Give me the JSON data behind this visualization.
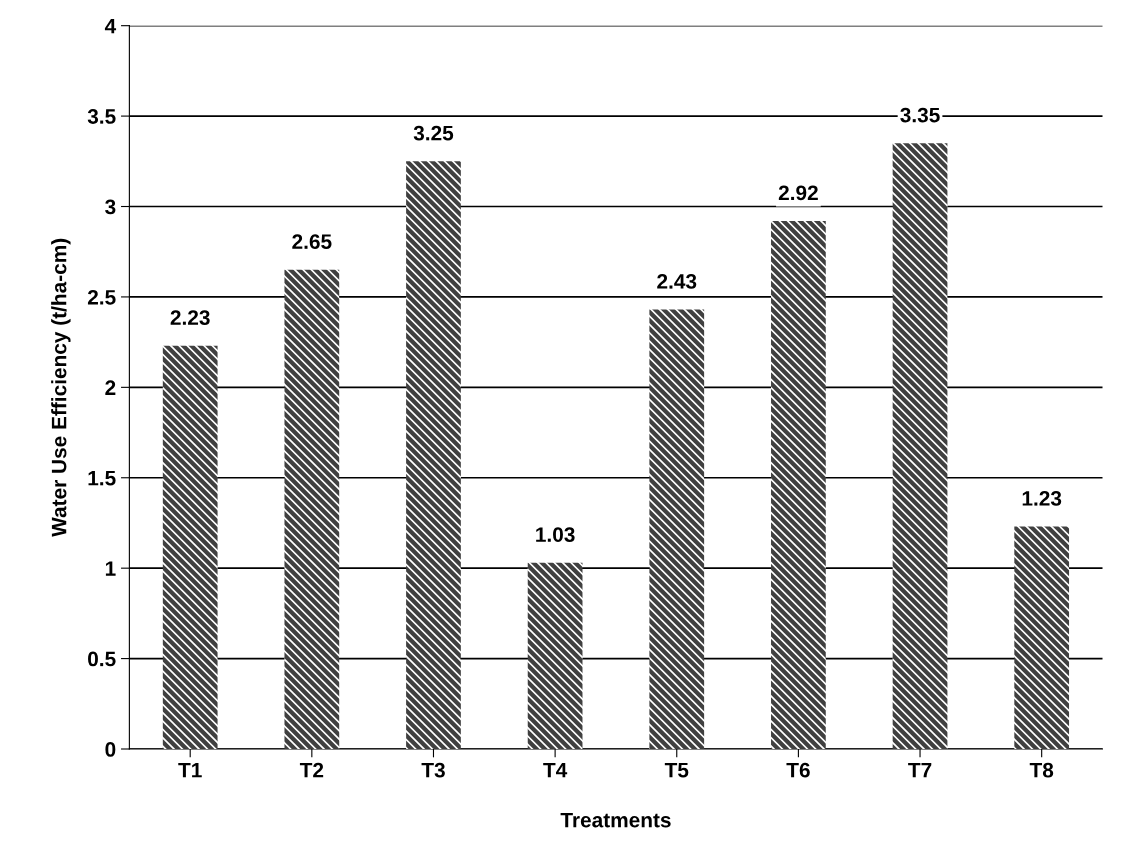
{
  "chart_data": {
    "type": "bar",
    "xlabel": "Treatments",
    "ylabel": "Water Use Efficiency (t/ha-cm)",
    "categories": [
      "T1",
      "T2",
      "T3",
      "T4",
      "T5",
      "T6",
      "T7",
      "T8"
    ],
    "values": [
      2.23,
      2.65,
      3.25,
      1.03,
      2.43,
      2.92,
      3.35,
      1.23
    ],
    "color": "#404040",
    "data_labels": true,
    "grid": "y",
    "ylim": [
      0,
      4
    ],
    "yticks": [
      0,
      0.5,
      1,
      1.5,
      2,
      2.5,
      3,
      3.5,
      4
    ]
  }
}
